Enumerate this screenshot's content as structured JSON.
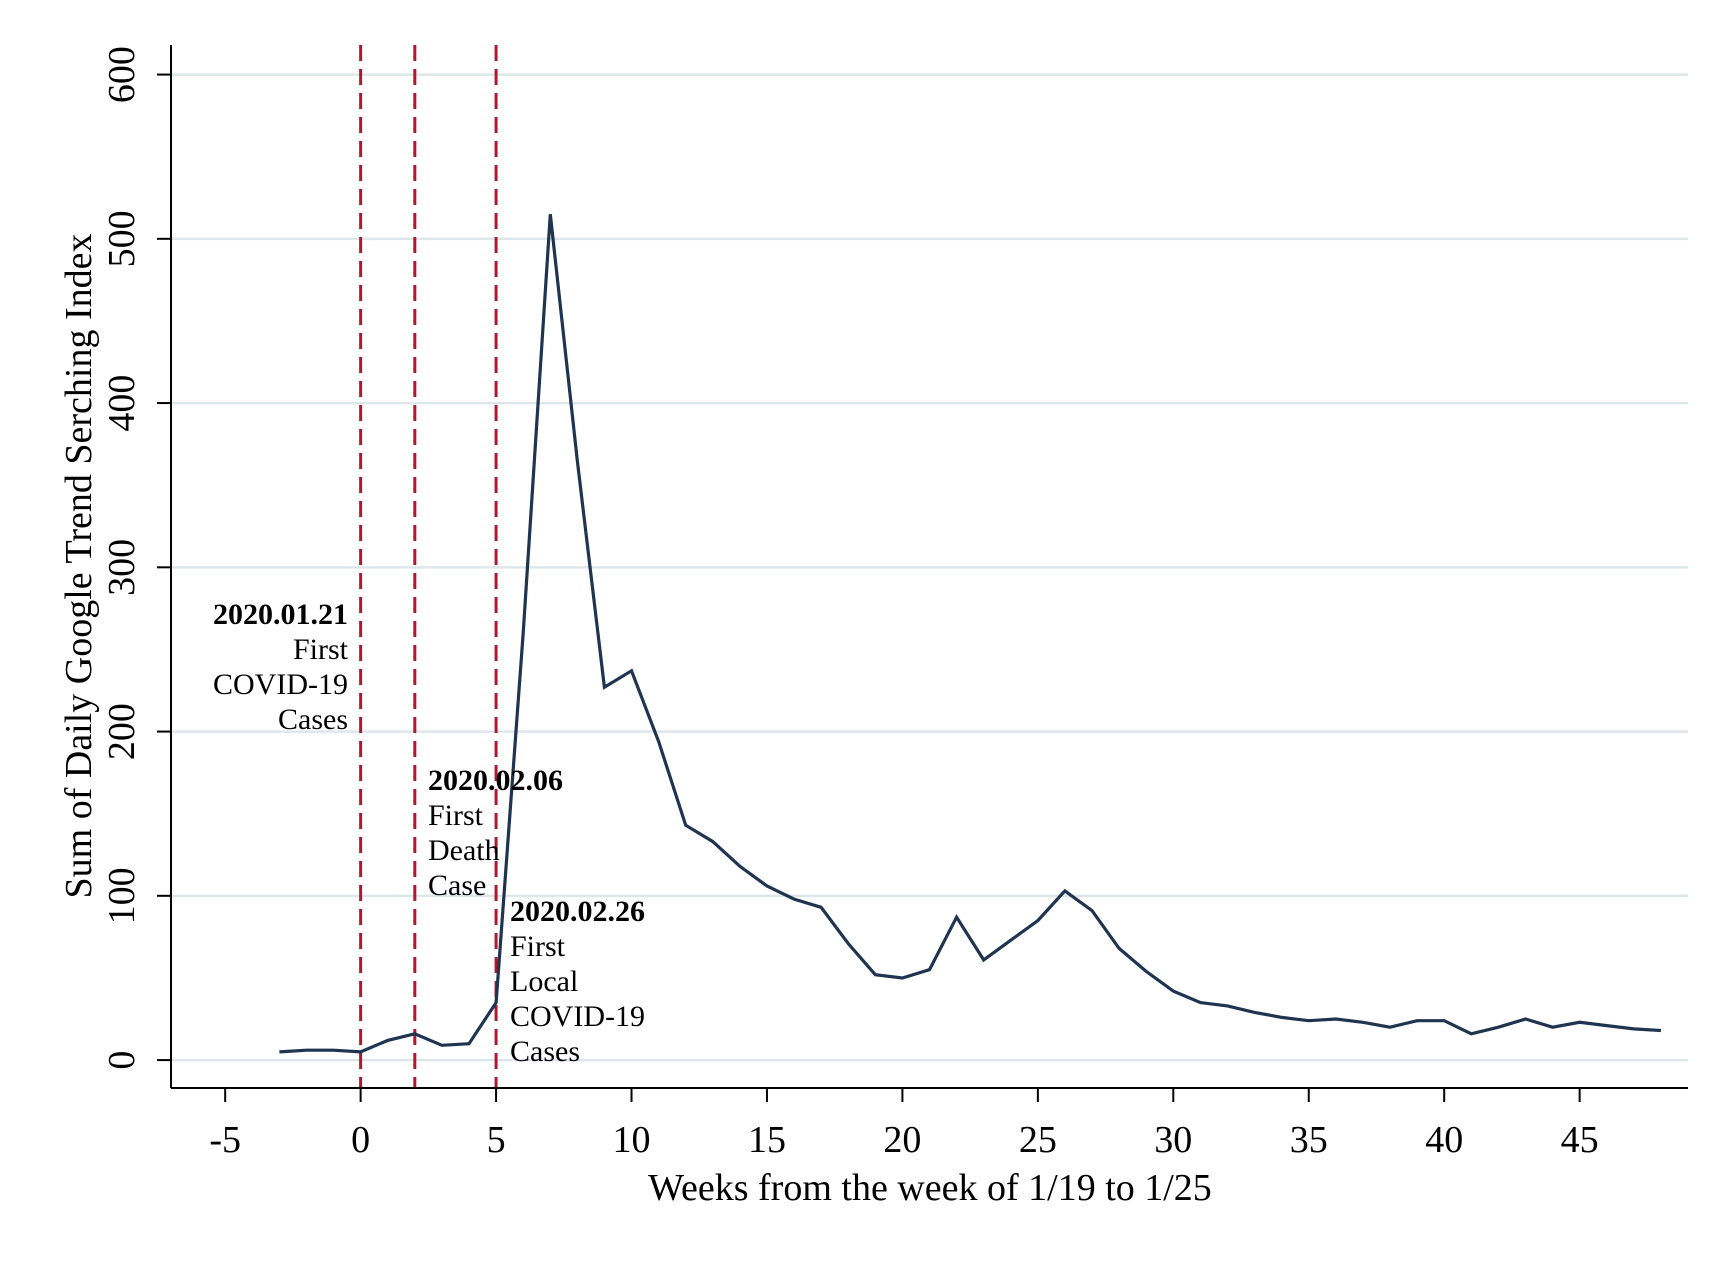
{
  "chart_data": {
    "type": "line",
    "title": "",
    "xlabel": "Weeks from the week of 1/19 to 1/25",
    "ylabel": "Sum of Daily Google Trend Serching Index",
    "xlim": [
      -7,
      49
    ],
    "ylim": [
      -17,
      618
    ],
    "x_ticks": [
      -5,
      0,
      5,
      10,
      15,
      20,
      25,
      30,
      35,
      40,
      45
    ],
    "y_ticks": [
      0,
      100,
      200,
      300,
      400,
      500,
      600
    ],
    "grid": "horizontal",
    "colors": {
      "line": "#1f3451",
      "event_line": "#b2182b",
      "grid": "#dde7ea"
    },
    "series": [
      {
        "x": [
          -3,
          -2,
          -1,
          0,
          1,
          2,
          3,
          4,
          5,
          6,
          7,
          8,
          9,
          10,
          11,
          12,
          13,
          14,
          15,
          16,
          17,
          18,
          19,
          20,
          21,
          22,
          23,
          24,
          25,
          26,
          27,
          28,
          29,
          30,
          31,
          32,
          33,
          34,
          35,
          36,
          37,
          38,
          39,
          40,
          41,
          42,
          43,
          44,
          45,
          46,
          47,
          48
        ],
        "values": [
          5,
          6,
          6,
          5,
          12,
          16,
          9,
          10,
          35,
          260,
          515,
          365,
          227,
          237,
          194,
          143,
          133,
          118,
          106,
          98,
          93,
          71,
          52,
          50,
          55,
          87,
          61,
          73,
          85,
          103,
          91,
          68,
          54,
          42,
          35,
          33,
          29,
          26,
          24,
          25,
          23,
          20,
          24,
          24,
          16,
          20,
          25,
          20,
          23,
          21,
          19,
          18
        ]
      }
    ],
    "events": [
      {
        "x": 0,
        "date": "2020.01.21",
        "lines": [
          "First",
          "COVID-19",
          "Cases"
        ]
      },
      {
        "x": 2,
        "date": "2020.02.06",
        "lines": [
          "First",
          "Death",
          "Case"
        ]
      },
      {
        "x": 5,
        "date": "2020.02.26",
        "lines": [
          "First",
          "Local",
          "COVID-19",
          "Cases"
        ]
      }
    ]
  }
}
